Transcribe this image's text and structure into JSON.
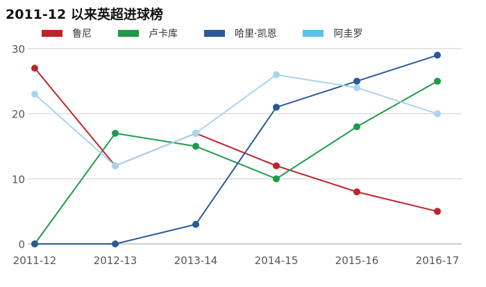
{
  "chart_data": {
    "type": "line",
    "title": "2011-12 以来英超进球榜",
    "xlabel": "",
    "ylabel": "",
    "ylim": [
      0,
      30
    ],
    "yticks": [
      0,
      10,
      20,
      30
    ],
    "categories": [
      "2011-12",
      "2012-13",
      "2013-14",
      "2014-15",
      "2015-16",
      "2016-17"
    ],
    "grid": true,
    "legend_position": "top",
    "series": [
      {
        "name": "鲁尼",
        "color": "#c0222b",
        "values": [
          27,
          12,
          17,
          12,
          8,
          5
        ]
      },
      {
        "name": "卢卡库",
        "color": "#1e9a4b",
        "values": [
          0,
          17,
          15,
          10,
          18,
          25
        ]
      },
      {
        "name": "哈里·凯恩",
        "color": "#2a5a97",
        "values": [
          0,
          0,
          3,
          21,
          25,
          29
        ]
      },
      {
        "name": "阿圭罗",
        "color": "#a8d4ee",
        "values": [
          23,
          12,
          17,
          26,
          24,
          20
        ]
      }
    ]
  }
}
